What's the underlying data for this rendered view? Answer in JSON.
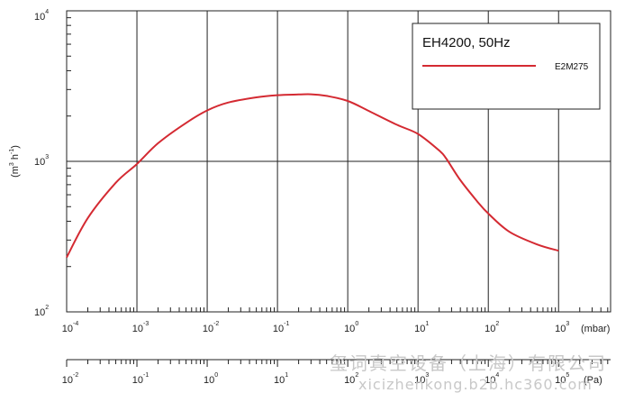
{
  "chart_data": {
    "type": "line",
    "title": "EH4200, 50Hz",
    "ylabel_base": "(m",
    "ylabel_sup1": "3",
    "ylabel_mid": " h",
    "ylabel_sup2": "-1",
    "ylabel_end": ")",
    "x_unit": "(mbar)",
    "x2_unit": "(Pa)",
    "xscale": "log",
    "yscale": "log",
    "xlim": [
      0.0001,
      1000
    ],
    "ylim": [
      100,
      10000
    ],
    "x2lim": [
      0.01,
      100000
    ],
    "grid": true,
    "legend_position": "top-right",
    "x_ticks": [
      {
        "base": "10",
        "exp": "-4"
      },
      {
        "base": "10",
        "exp": "-3"
      },
      {
        "base": "10",
        "exp": "-2"
      },
      {
        "base": "10",
        "exp": "-1"
      },
      {
        "base": "10",
        "exp": "0"
      },
      {
        "base": "10",
        "exp": "1"
      },
      {
        "base": "10",
        "exp": "2"
      },
      {
        "base": "10",
        "exp": "3"
      }
    ],
    "x2_ticks": [
      {
        "base": "10",
        "exp": "-2"
      },
      {
        "base": "10",
        "exp": "-1"
      },
      {
        "base": "10",
        "exp": "0"
      },
      {
        "base": "10",
        "exp": "1"
      },
      {
        "base": "10",
        "exp": "2"
      },
      {
        "base": "10",
        "exp": "3"
      },
      {
        "base": "10",
        "exp": "4"
      },
      {
        "base": "10",
        "exp": "5"
      }
    ],
    "y_ticks": [
      {
        "base": "10",
        "exp": "2"
      },
      {
        "base": "10",
        "exp": "3"
      },
      {
        "base": "10",
        "exp": "4"
      }
    ],
    "series": [
      {
        "name": "E2M275",
        "color": "#d42a32",
        "points": [
          [
            0.0001,
            230
          ],
          [
            0.0002,
            420
          ],
          [
            0.0005,
            720
          ],
          [
            0.001,
            960
          ],
          [
            0.002,
            1320
          ],
          [
            0.005,
            1800
          ],
          [
            0.01,
            2180
          ],
          [
            0.02,
            2460
          ],
          [
            0.05,
            2660
          ],
          [
            0.1,
            2750
          ],
          [
            0.2,
            2780
          ],
          [
            0.3,
            2790
          ],
          [
            0.5,
            2720
          ],
          [
            1,
            2520
          ],
          [
            2,
            2160
          ],
          [
            5,
            1750
          ],
          [
            10,
            1520
          ],
          [
            20,
            1180
          ],
          [
            25,
            1050
          ],
          [
            40,
            750
          ],
          [
            70,
            540
          ],
          [
            100,
            450
          ],
          [
            200,
            340
          ],
          [
            500,
            280
          ],
          [
            1000,
            255
          ]
        ]
      }
    ]
  },
  "watermark": {
    "line1": "玺词真空设备（上海）有限公司",
    "line2": "xicizhenkong.b2b.hc360.com"
  }
}
